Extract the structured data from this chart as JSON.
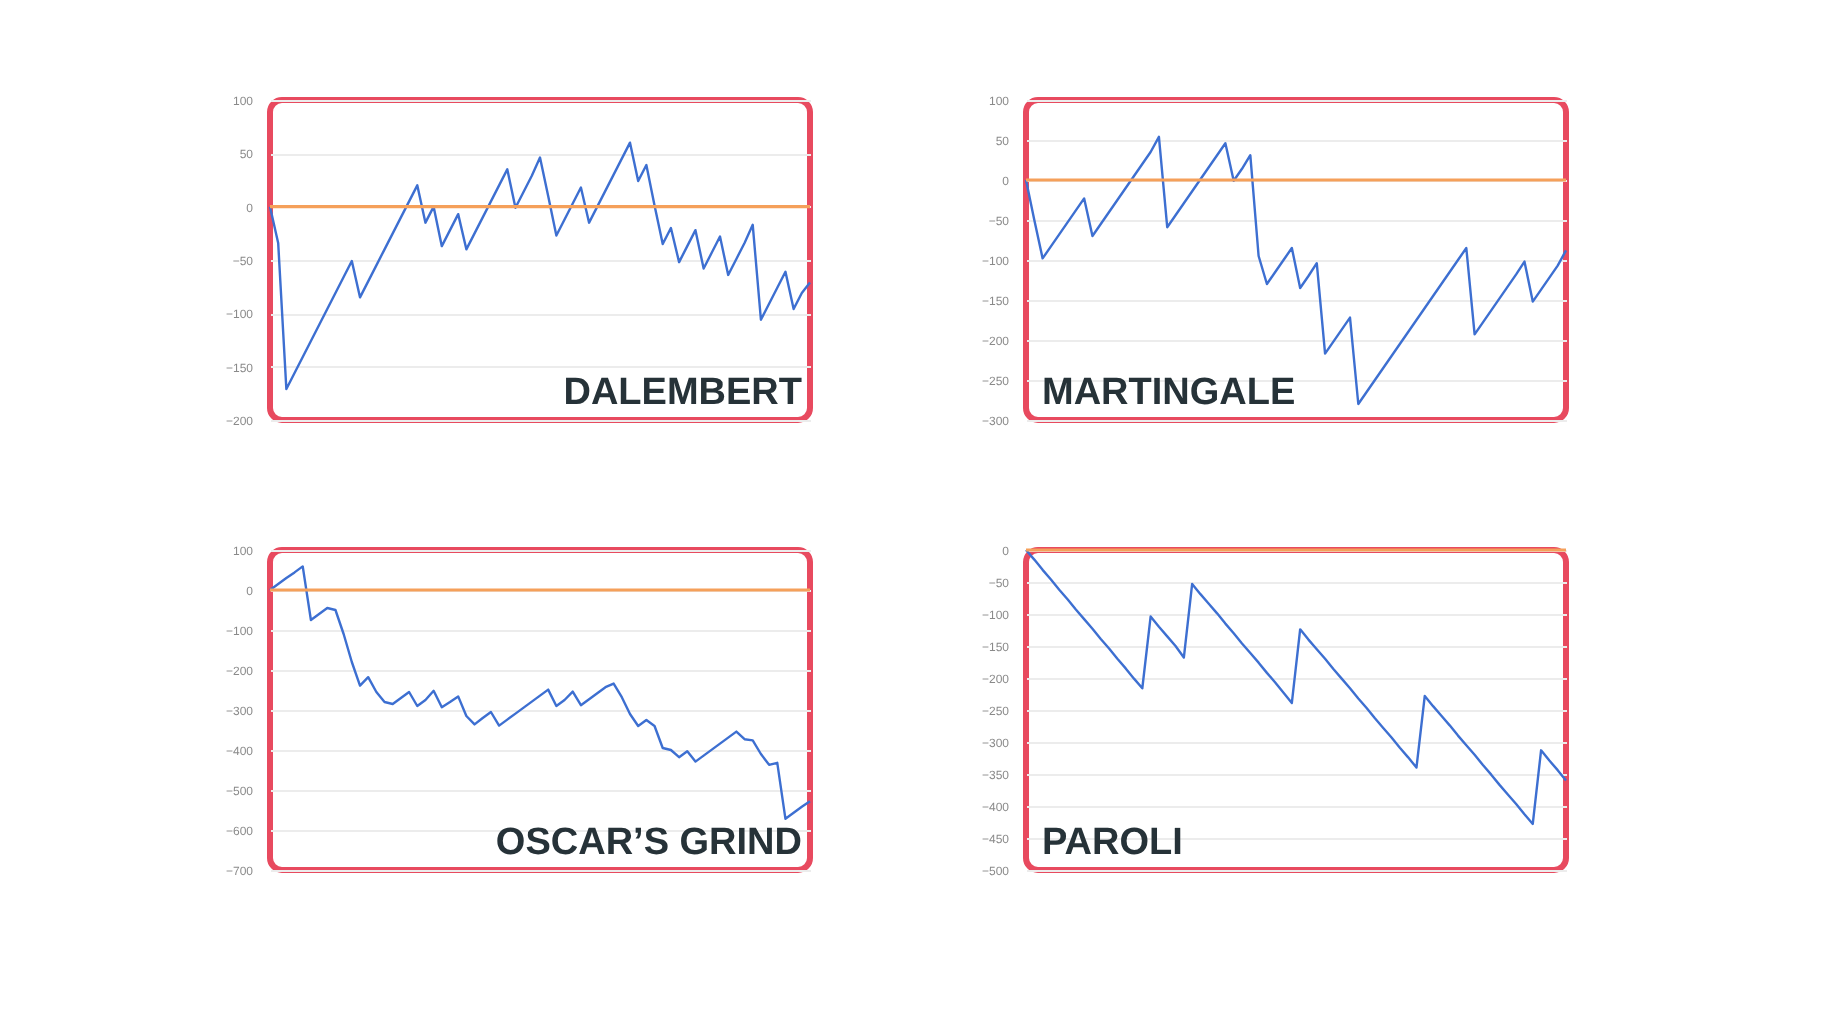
{
  "chart_data": [
    {
      "type": "line",
      "title": "DALEMBERT",
      "categories": [
        null,
        null,
        null,
        null,
        null,
        null,
        null,
        null,
        null,
        null,
        null,
        null,
        null,
        null,
        null,
        null,
        null,
        null,
        null,
        null,
        null,
        null,
        null,
        null,
        null,
        null,
        null,
        null,
        null,
        null,
        null,
        null,
        null,
        null,
        null,
        null,
        null,
        null,
        null,
        null,
        null,
        null,
        null,
        null,
        null,
        null,
        null,
        null,
        null,
        null,
        null,
        null,
        null,
        null,
        null,
        null,
        null,
        null,
        null,
        null,
        null,
        null,
        null,
        null,
        null,
        null,
        null
      ],
      "series": [
        {
          "color": "#3d6fd1",
          "values": [
            0,
            -34,
            -171,
            -156,
            -141,
            -126,
            -111,
            -96,
            -81,
            -66,
            -51,
            -85,
            -70,
            -55,
            -40,
            -25,
            -10,
            5,
            20,
            -15,
            0,
            -37,
            -22,
            -7,
            -40,
            -25,
            -10,
            5,
            20,
            35,
            -1,
            14,
            29,
            46,
            10,
            -27,
            -12,
            3,
            18,
            -15,
            0,
            15,
            30,
            45,
            60,
            24,
            39,
            1,
            -35,
            -20,
            -52,
            -37,
            -22,
            -58,
            -43,
            -28,
            -64,
            -49,
            -34,
            -17,
            -106,
            -91,
            -76,
            -61,
            -96,
            -81,
            -71
          ]
        }
      ],
      "ylim": [
        -200,
        100
      ],
      "yticks": [
        -200,
        -150,
        -100,
        -50,
        0,
        50,
        100
      ],
      "grid": "y",
      "ref_lines": [
        {
          "axis": "y",
          "value": 0,
          "color": "#f5a05a"
        }
      ]
    },
    {
      "type": "line",
      "title": "MARTINGALE",
      "categories": [
        null,
        null,
        null,
        null,
        null,
        null,
        null,
        null,
        null,
        null,
        null,
        null,
        null,
        null,
        null,
        null,
        null,
        null,
        null,
        null,
        null,
        null,
        null,
        null,
        null,
        null,
        null,
        null,
        null,
        null,
        null,
        null,
        null,
        null,
        null,
        null,
        null,
        null,
        null,
        null,
        null,
        null,
        null,
        null,
        null,
        null,
        null,
        null,
        null,
        null,
        null,
        null,
        null,
        null,
        null,
        null,
        null,
        null,
        null,
        null,
        null,
        null,
        null,
        null,
        null,
        null
      ],
      "series": [
        {
          "color": "#3d6fd1",
          "values": [
            0,
            -50,
            -98,
            -83,
            -68,
            -53,
            -38,
            -23,
            -70,
            -55,
            -40,
            -25,
            -10,
            5,
            20,
            35,
            54,
            -59,
            -44,
            -29,
            -14,
            1,
            16,
            31,
            46,
            -1,
            14,
            31,
            -95,
            -130,
            -115,
            -100,
            -85,
            -135,
            -120,
            -104,
            -217,
            -202,
            -187,
            -172,
            -280,
            -265,
            -250,
            -235,
            -220,
            -205,
            -190,
            -175,
            -160,
            -145,
            -130,
            -115,
            -100,
            -85,
            -193,
            -178,
            -163,
            -148,
            -133,
            -118,
            -102,
            -152,
            -137,
            -122,
            -107,
            -88
          ]
        }
      ],
      "ylim": [
        -300,
        100
      ],
      "yticks": [
        -300,
        -250,
        -200,
        -150,
        -100,
        -50,
        0,
        50,
        100
      ],
      "grid": "y",
      "ref_lines": [
        {
          "axis": "y",
          "value": 0,
          "color": "#f5a05a"
        }
      ]
    },
    {
      "type": "line",
      "title": "OSCAR’S GRIND",
      "categories": [
        null,
        null,
        null,
        null,
        null,
        null,
        null,
        null,
        null,
        null,
        null,
        null,
        null,
        null,
        null,
        null,
        null,
        null,
        null,
        null,
        null,
        null,
        null,
        null,
        null,
        null,
        null,
        null,
        null,
        null,
        null,
        null,
        null,
        null,
        null,
        null,
        null,
        null,
        null,
        null,
        null,
        null,
        null,
        null,
        null,
        null,
        null,
        null,
        null,
        null,
        null,
        null,
        null,
        null,
        null,
        null,
        null,
        null,
        null,
        null,
        null,
        null,
        null,
        null,
        null,
        null,
        null
      ],
      "series": [
        {
          "color": "#3d6fd1",
          "values": [
            0,
            15,
            30,
            44,
            59,
            -75,
            -60,
            -45,
            -50,
            -110,
            -180,
            -239,
            -218,
            -255,
            -280,
            -285,
            -270,
            -255,
            -290,
            -275,
            -252,
            -293,
            -280,
            -266,
            -315,
            -336,
            -320,
            -305,
            -339,
            -324,
            -309,
            -294,
            -279,
            -264,
            -249,
            -290,
            -275,
            -254,
            -288,
            -273,
            -258,
            -243,
            -234,
            -268,
            -310,
            -340,
            -325,
            -340,
            -395,
            -400,
            -418,
            -403,
            -429,
            -414,
            -399,
            -384,
            -369,
            -354,
            -373,
            -376,
            -410,
            -437,
            -432,
            -572,
            -557,
            -542,
            -528
          ]
        }
      ],
      "ylim": [
        -700,
        100
      ],
      "yticks": [
        -700,
        -600,
        -500,
        -400,
        -300,
        -200,
        -100,
        0,
        100
      ],
      "grid": "y",
      "ref_lines": [
        {
          "axis": "y",
          "value": 0,
          "color": "#f5a05a"
        }
      ]
    },
    {
      "type": "line",
      "title": "PAROLI",
      "categories": [
        null,
        null,
        null,
        null,
        null,
        null,
        null,
        null,
        null,
        null,
        null,
        null,
        null,
        null,
        null,
        null,
        null,
        null,
        null,
        null,
        null,
        null,
        null,
        null,
        null,
        null,
        null,
        null,
        null,
        null,
        null,
        null,
        null,
        null,
        null,
        null,
        null,
        null,
        null,
        null,
        null,
        null,
        null,
        null,
        null,
        null,
        null,
        null,
        null,
        null,
        null,
        null,
        null,
        null,
        null,
        null,
        null,
        null,
        null,
        null,
        null,
        null,
        null,
        null,
        null,
        null
      ],
      "series": [
        {
          "color": "#3d6fd1",
          "values": [
            0,
            -15,
            -31,
            -46,
            -62,
            -77,
            -93,
            -108,
            -123,
            -139,
            -154,
            -170,
            -185,
            -201,
            -216,
            -104,
            -120,
            -135,
            -150,
            -168,
            -53,
            -69,
            -84,
            -99,
            -115,
            -130,
            -146,
            -161,
            -176,
            -192,
            -207,
            -223,
            -239,
            -124,
            -140,
            -155,
            -170,
            -186,
            -201,
            -216,
            -232,
            -247,
            -263,
            -278,
            -293,
            -309,
            -324,
            -340,
            -228,
            -244,
            -259,
            -274,
            -290,
            -305,
            -320,
            -336,
            -351,
            -367,
            -382,
            -397,
            -413,
            -428,
            -313,
            -329,
            -344,
            -360
          ]
        }
      ],
      "ylim": [
        -500,
        0
      ],
      "yticks": [
        -500,
        -450,
        -400,
        -350,
        -300,
        -250,
        -200,
        -150,
        -100,
        -50,
        0
      ],
      "grid": "y",
      "ref_lines": [
        {
          "axis": "y",
          "value": 0,
          "color": "#f5a05a"
        }
      ]
    }
  ]
}
